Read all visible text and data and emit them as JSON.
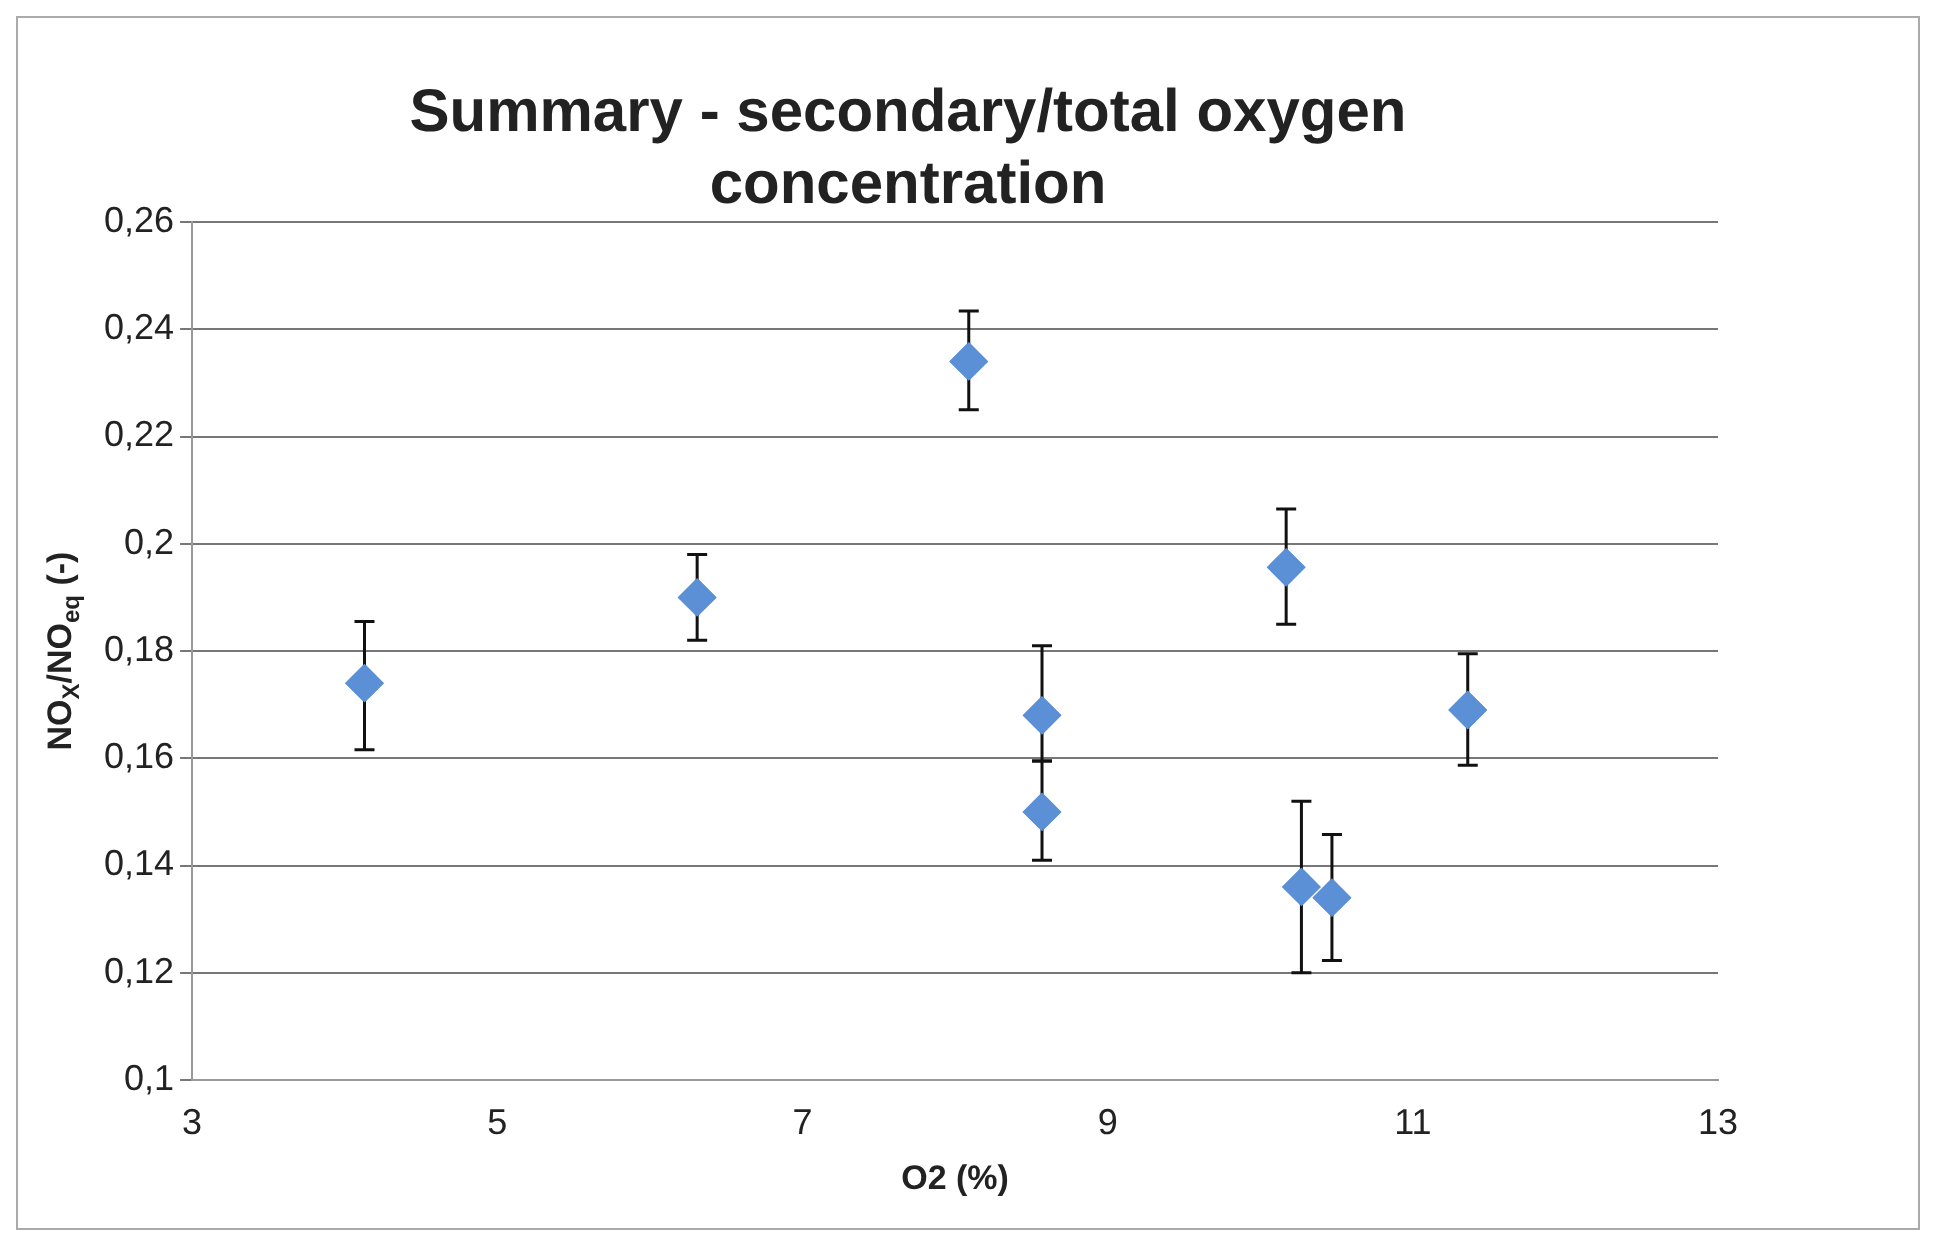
{
  "chart_data": {
    "type": "scatter",
    "title": "Summary - secondary/total oxygen concentration",
    "xlabel": "O2 (%)",
    "ylabel": "NO$_{X}$/NO$_{eq}$ (-)",
    "x": [
      4.13,
      6.31,
      8.09,
      8.57,
      8.57,
      10.17,
      10.27,
      10.47,
      11.36
    ],
    "series": [
      {
        "color": "#5b8fd6",
        "values": [
          0.174,
          0.19,
          0.234,
          0.168,
          0.15,
          0.1956,
          0.136,
          0.134,
          0.169
        ],
        "errors": [
          [
            0.1616,
            0.1855
          ],
          [
            0.182,
            0.198
          ],
          [
            0.225,
            0.2434
          ],
          [
            0.1595,
            0.181
          ],
          [
            0.141,
            0.1595
          ],
          [
            0.185,
            0.2065
          ],
          [
            0.12,
            0.152
          ],
          [
            0.1223,
            0.1458
          ],
          [
            0.1587,
            0.1795
          ]
        ]
      }
    ],
    "xlim": [
      3,
      13
    ],
    "xticks": [
      3,
      5,
      7,
      9,
      11,
      13
    ],
    "ylim": [
      0.1,
      0.26
    ],
    "yticks": [
      {
        "value": 0.1,
        "label": "0,1"
      },
      {
        "value": 0.12,
        "label": "0,12"
      },
      {
        "value": 0.14,
        "label": "0,14"
      },
      {
        "value": 0.16,
        "label": "0,16"
      },
      {
        "value": 0.18,
        "label": "0,18"
      },
      {
        "value": 0.2,
        "label": "0,2"
      },
      {
        "value": 0.22,
        "label": "0,22"
      },
      {
        "value": 0.24,
        "label": "0,24"
      },
      {
        "value": 0.26,
        "label": "0,26"
      }
    ],
    "grid": "y",
    "marker": "diamond",
    "legend": false
  }
}
